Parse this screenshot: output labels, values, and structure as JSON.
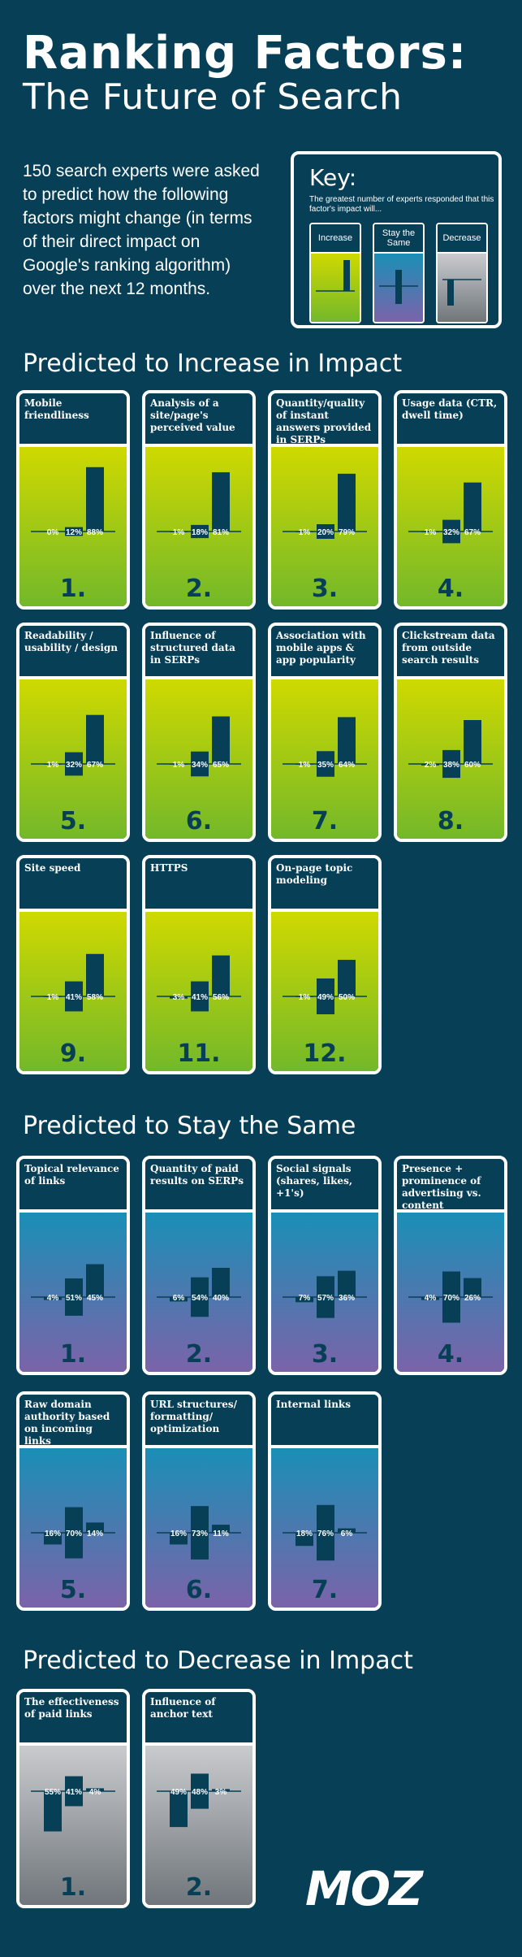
{
  "header": {
    "title": "Ranking Factors:",
    "subtitle": "The Future of Search"
  },
  "intro": "150 search experts were asked to predict how the following factors might change (in terms of their direct impact on Google's ranking algorithm) over the next 12 months.",
  "key": {
    "title": "Key:",
    "subtitle": "The greatest number of experts responded that this factor's impact will...",
    "columns": [
      "Increase",
      "Stay the Same",
      "Decrease"
    ]
  },
  "sections": {
    "increase": "Predicted to Increase in Impact",
    "same": "Predicted to Stay the Same",
    "decrease": "Predicted to Decrease in Impact"
  },
  "logo": "MOZ",
  "colors": {
    "background": "#073f56",
    "increase_top": "#cfd900",
    "increase_bottom": "#73b82a",
    "same_top": "#1a8fb6",
    "same_bottom": "#7b63a9",
    "decrease_top": "#c9cbce",
    "decrease_bottom": "#70767b",
    "bar": "#073f56"
  },
  "chart_data": [
    {
      "type": "bar",
      "group": "increase",
      "series": [
        "Decrease",
        "Stay the Same",
        "Increase"
      ],
      "factors": [
        {
          "name": "Mobile friendliness",
          "rank": "1.",
          "values": [
            0,
            12,
            88
          ]
        },
        {
          "name": "Analysis of a site/page's perceived value",
          "rank": "2.",
          "values": [
            1,
            18,
            81
          ]
        },
        {
          "name": "Quantity/quality of instant answers provided in SERPs",
          "rank": "3.",
          "values": [
            1,
            20,
            79
          ]
        },
        {
          "name": "Usage data (CTR, dwell time)",
          "rank": "4.",
          "values": [
            1,
            32,
            67
          ]
        },
        {
          "name": "Readability / usability / design",
          "rank": "5.",
          "values": [
            1,
            32,
            67
          ]
        },
        {
          "name": "Influence of structured data in SERPs",
          "rank": "6.",
          "values": [
            1,
            34,
            65
          ]
        },
        {
          "name": "Association with mobile apps & app popularity",
          "rank": "7.",
          "values": [
            1,
            35,
            64
          ]
        },
        {
          "name": "Clickstream data from outside search results",
          "rank": "8.",
          "values": [
            2,
            38,
            60
          ]
        },
        {
          "name": "Site speed",
          "rank": "9.",
          "values": [
            1,
            41,
            58
          ]
        },
        {
          "name": "HTTPS",
          "rank": "11.",
          "values": [
            3,
            41,
            56
          ]
        },
        {
          "name": "On-page topic modeling",
          "rank": "12.",
          "values": [
            1,
            49,
            50
          ]
        }
      ]
    },
    {
      "type": "bar",
      "group": "same",
      "series": [
        "Decrease",
        "Stay the Same",
        "Increase"
      ],
      "factors": [
        {
          "name": "Topical relevance of links",
          "rank": "1.",
          "values": [
            4,
            51,
            45
          ]
        },
        {
          "name": "Quantity of paid results on SERPs",
          "rank": "2.",
          "values": [
            6,
            54,
            40
          ]
        },
        {
          "name": "Social signals (shares, likes, +1's)",
          "rank": "3.",
          "values": [
            7,
            57,
            36
          ]
        },
        {
          "name": "Presence + prominence of advertising vs. content",
          "rank": "4.",
          "values": [
            4,
            70,
            26
          ]
        },
        {
          "name": "Raw domain authority based on incoming links",
          "rank": "5.",
          "values": [
            16,
            70,
            14
          ]
        },
        {
          "name": "URL structures/ formatting/ optimization",
          "rank": "6.",
          "values": [
            16,
            73,
            11
          ]
        },
        {
          "name": "Internal links",
          "rank": "7.",
          "values": [
            18,
            76,
            6
          ]
        }
      ]
    },
    {
      "type": "bar",
      "group": "decrease",
      "series": [
        "Decrease",
        "Stay the Same",
        "Increase"
      ],
      "factors": [
        {
          "name": "The effectiveness of paid links",
          "rank": "1.",
          "values": [
            55,
            41,
            4
          ]
        },
        {
          "name": "Influence of anchor text",
          "rank": "2.",
          "values": [
            49,
            48,
            3
          ]
        }
      ]
    }
  ]
}
